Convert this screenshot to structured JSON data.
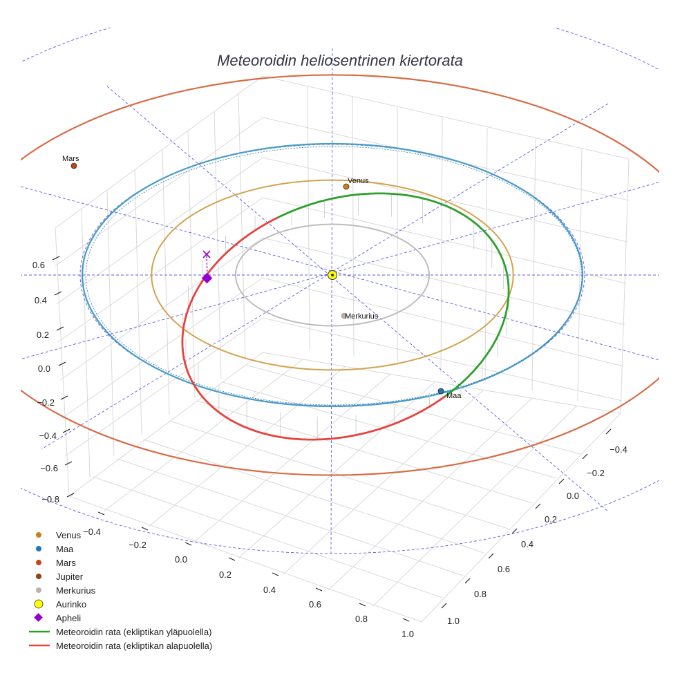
{
  "chart_data": {
    "type": "3d-orbit-plot",
    "title": "Meteoroidin heliosentrinen kiertorata",
    "colors": {
      "venus": "#c87f1e",
      "venus_orbit": "#d4a24c",
      "maa": "#1f77b4",
      "maa_orbit": "#4a9cc8",
      "mars": "#c0451c",
      "mars_orbit": "#d96b45",
      "jupiter": "#8b4513",
      "merkurius": "#bfb0a8",
      "merkurius_orbit": "#bdbdbd",
      "aurinko": "#ffff00",
      "apheli": "#9400d3",
      "above": "#2ca02c",
      "below": "#e8413d",
      "guide": "#5a5ae6",
      "grid": "#d9d9d9"
    },
    "axes": {
      "x_ticks": [
        "−0.4",
        "−0.2",
        "0.0",
        "0.2",
        "0.4",
        "0.6",
        "0.8",
        "1.0"
      ],
      "y_ticks": [
        "−0.4",
        "−0.2",
        "0.0",
        "0.2",
        "0.4",
        "0.6",
        "0.8",
        "1.0"
      ],
      "z_ticks": [
        "0.6",
        "0.4",
        "0.2",
        "0.0",
        "−0.2",
        "−0.4",
        "−0.6",
        "−0.8"
      ]
    },
    "orbit_radii_au": {
      "merkurius": 0.387,
      "venus": 0.723,
      "maa": 1.0,
      "mars": 1.524
    },
    "planet_labels": {
      "venus": "Venus",
      "maa": "Maa",
      "mars": "Mars",
      "merkurius": "Merkurius"
    },
    "legend": [
      {
        "label": "Venus",
        "kind": "dot",
        "color": "#c87f1e"
      },
      {
        "label": "Maa",
        "kind": "dot",
        "color": "#1f77b4"
      },
      {
        "label": "Mars",
        "kind": "dot",
        "color": "#c0451c"
      },
      {
        "label": "Jupiter",
        "kind": "dot",
        "color": "#8b4513"
      },
      {
        "label": "Merkurius",
        "kind": "dot",
        "color": "#bfb0a8"
      },
      {
        "label": "Aurinko",
        "kind": "sun",
        "color": "#ffff00"
      },
      {
        "label": "Apheli",
        "kind": "diamond",
        "color": "#9400d3"
      },
      {
        "label": "Meteoroidin rata (ekliptikan yläpuolella)",
        "kind": "line",
        "color": "#2ca02c"
      },
      {
        "label": "Meteoroidin rata (ekliptikan alapuolella)",
        "kind": "line",
        "color": "#e8413d"
      }
    ]
  }
}
